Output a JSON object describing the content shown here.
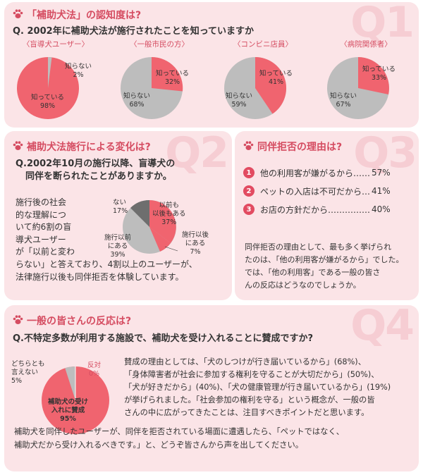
{
  "colors": {
    "accent": "#d54c61",
    "pie_pink": "#f0646f",
    "pie_gray": "#bdbdbd",
    "pie_dark": "#6e6e6e",
    "panel_bg": "#fbe4e7"
  },
  "q1": {
    "watermark": "Q1",
    "title": "「補助犬法」の認知度は?",
    "question": "Q. 2002年に補助犬法が施行されたことを知っていますか",
    "charts": [
      {
        "group": "〈盲導犬ユーザー〉",
        "know_label": "知っている",
        "know_pct": "98%",
        "dont_label": "知らない",
        "dont_pct": "2%"
      },
      {
        "group": "〈一般市民の方〉",
        "know_label": "知っている",
        "know_pct": "32%",
        "dont_label": "知らない",
        "dont_pct": "68%"
      },
      {
        "group": "〈コンビニ店員〉",
        "know_label": "知っている",
        "know_pct": "41%",
        "dont_label": "知らない",
        "dont_pct": "59%"
      },
      {
        "group": "〈病院関係者〉",
        "know_label": "知っている",
        "know_pct": "33%",
        "dont_label": "知らない",
        "dont_pct": "67%"
      }
    ]
  },
  "q2": {
    "watermark": "Q2",
    "title": "補助犬法施行による変化は?",
    "question_line1": "Q.2002年10月の施行以降、盲導犬の",
    "question_line2": "同伴を断られたことがありますか。",
    "body_col_lines": [
      "施行後の社会",
      "的な理解につ",
      "いて約6割の盲",
      "導犬ユーザー",
      "が「以前と変わ",
      "らない」"
    ],
    "body_tail": "と答えており、4割以上のユーザーが、",
    "body_last": "法律施行以後も同伴拒否を体験しています。",
    "pie": {
      "before_label1": "以前も",
      "before_label2": "以後もある",
      "before_pct": "37%",
      "after_label1": "施行以後",
      "after_label2": "にある",
      "after_pct": "7%",
      "prior_label1": "施行以前",
      "prior_label2": "にある",
      "prior_pct": "39%",
      "none_label": "ない",
      "none_pct": "17%"
    }
  },
  "q3": {
    "watermark": "Q3",
    "title": "同伴拒否の理由は?",
    "reasons": [
      {
        "num": "1",
        "text": "他の利用客が嫌がるから……",
        "pct": "57%"
      },
      {
        "num": "2",
        "text": "ペットの入店は不可だから…",
        "pct": "41%"
      },
      {
        "num": "3",
        "text": "お店の方針だから……………",
        "pct": "40%"
      }
    ],
    "body_lines": [
      "同伴拒否の理由として、最も多く挙げられ",
      "たのは、「他の利用客が嫌がるから」でした。",
      "では、「他の利用客」である一般の皆さ",
      "んの反応はどうなのでしょうか。"
    ]
  },
  "q4": {
    "watermark": "Q4",
    "title": "一般の皆さんの反応は?",
    "question": "Q.不特定多数が利用する施設で、補助犬を受け入れることに賛成ですか?",
    "pie": {
      "neutral_label1": "どちらとも",
      "neutral_label2": "言えない",
      "neutral_pct": "5%",
      "oppose_label": "反対",
      "oppose_pct": "0%",
      "agree_label1": "補助犬の受け",
      "agree_label2": "入れに賛成",
      "agree_pct": "95%"
    },
    "body_lines": [
      "賛成の理由としては、「犬のしつけが行き届いているから」(68%)、",
      "「身体障害者が社会に参加する権利を守ることが大切だから」(50%)、",
      "「犬が好きだから」(40%)、「犬の健康管理が行き届いているから」(19%)",
      "が挙げられました。「社会参加の権利を守る」という概念が、一般の皆",
      "さんの中に広がってきたことは、注目すべきポイントだと思います。"
    ],
    "closing_lines": [
      "補助犬を同伴したユーザーが、同伴を拒否されている場面に遭遇したら、「ペットではなく、",
      "補助犬だから受け入れるべきです。」と、どうぞ皆さんから声を出してください。"
    ]
  }
}
